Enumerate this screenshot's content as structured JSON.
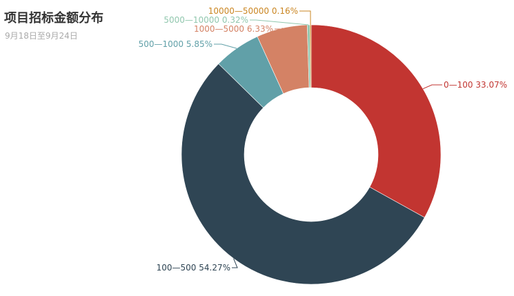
{
  "chart_data": {
    "type": "pie",
    "title": "项目招标金额分布",
    "subtitle": "9月18日至9月24日",
    "series": [
      {
        "name": "0—100",
        "value": 33.07,
        "label": "0—100 33.07%",
        "color": "#c23531"
      },
      {
        "name": "100—500",
        "value": 54.27,
        "label": "100—500 54.27%",
        "color": "#2f4554"
      },
      {
        "name": "500—1000",
        "value": 5.85,
        "label": "500—1000 5.85%",
        "color": "#61a0a8"
      },
      {
        "name": "1000—5000",
        "value": 6.33,
        "label": "1000—5000 6.33%",
        "color": "#d48265"
      },
      {
        "name": "5000—10000",
        "value": 0.32,
        "label": "5000—10000 0.32%",
        "color": "#91c7ae"
      },
      {
        "name": "10000—50000",
        "value": 0.16,
        "label": "10000—50000 0.16%",
        "color": "#ca8622"
      }
    ]
  }
}
